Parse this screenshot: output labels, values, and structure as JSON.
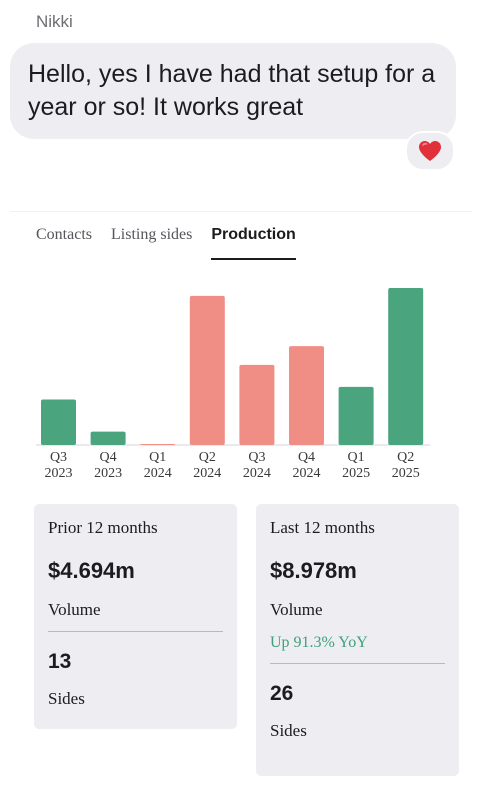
{
  "message": {
    "sender": "Nikki",
    "text": "Hello, yes I have had that setup for a year or so! It works great",
    "reaction_icon": "heart-icon"
  },
  "tabs": [
    {
      "label": "Contacts",
      "active": false
    },
    {
      "label": "Listing sides",
      "active": false
    },
    {
      "label": "Production",
      "active": true
    }
  ],
  "colors": {
    "green": "#4aa57f",
    "salmon": "#f08e86",
    "yoy_green": "#3fa07a"
  },
  "chart_data": {
    "type": "bar",
    "categories": [
      [
        "Q3",
        "2023"
      ],
      [
        "Q4",
        "2023"
      ],
      [
        "Q1",
        "2024"
      ],
      [
        "Q2",
        "2024"
      ],
      [
        "Q3",
        "2024"
      ],
      [
        "Q4",
        "2024"
      ],
      [
        "Q1",
        "2025"
      ],
      [
        "Q2",
        "2025"
      ]
    ],
    "values": [
      0.29,
      0.085,
      0.005,
      0.95,
      0.51,
      0.63,
      0.37,
      1.0
    ],
    "value_unit": "relative to tallest bar",
    "bar_colors": [
      "green",
      "green",
      "salmon",
      "salmon",
      "salmon",
      "salmon",
      "green",
      "green"
    ],
    "ylim": [
      0,
      1
    ],
    "grid": false
  },
  "stats": {
    "prior": {
      "label": "Prior 12 months",
      "amount": "$4.694m",
      "volume_label": "Volume",
      "sides": "13",
      "sides_label": "Sides"
    },
    "last": {
      "label": "Last 12 months",
      "amount": "$8.978m",
      "volume_label": "Volume",
      "yoy": "Up 91.3% YoY",
      "sides": "26",
      "sides_label": "Sides"
    }
  }
}
